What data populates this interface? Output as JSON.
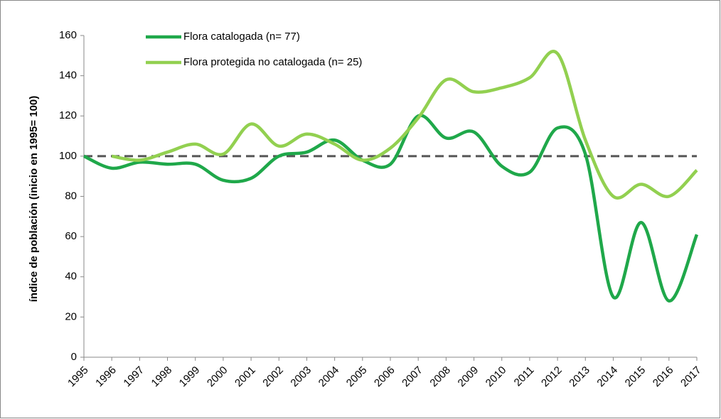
{
  "chart_data": {
    "type": "line",
    "y_label": "índice de población  (inicio en 1995= 100)",
    "categories": [
      "1995",
      "1996",
      "1997",
      "1998",
      "1999",
      "2000",
      "2001",
      "2002",
      "2003",
      "2004",
      "2005",
      "2006",
      "2007",
      "2008",
      "2009",
      "2010",
      "2011",
      "2012",
      "2013",
      "2014",
      "2015",
      "2016",
      "2017"
    ],
    "series": [
      {
        "name": "Flora catalogada  (n= 77)",
        "color": "#1fa84a",
        "values": [
          100,
          94,
          97,
          96,
          96,
          88,
          89,
          100,
          102,
          108,
          98,
          96,
          120,
          109,
          112,
          95,
          92,
          114,
          101,
          30,
          67,
          28,
          61
        ]
      },
      {
        "name": "Flora protegida no catalogada  (n= 25)",
        "color": "#92d050",
        "values": [
          null,
          100,
          98,
          102,
          106,
          101,
          116,
          105,
          111,
          106,
          98,
          104,
          119,
          138,
          132,
          134,
          139,
          151,
          108,
          80,
          86,
          80,
          93
        ]
      }
    ],
    "reference_line": 100,
    "reference_color": "#555555",
    "ylim": [
      0,
      160
    ],
    "yticks": [
      0,
      20,
      40,
      60,
      80,
      100,
      120,
      140,
      160
    ],
    "smooth": true,
    "legend": "top-left"
  }
}
